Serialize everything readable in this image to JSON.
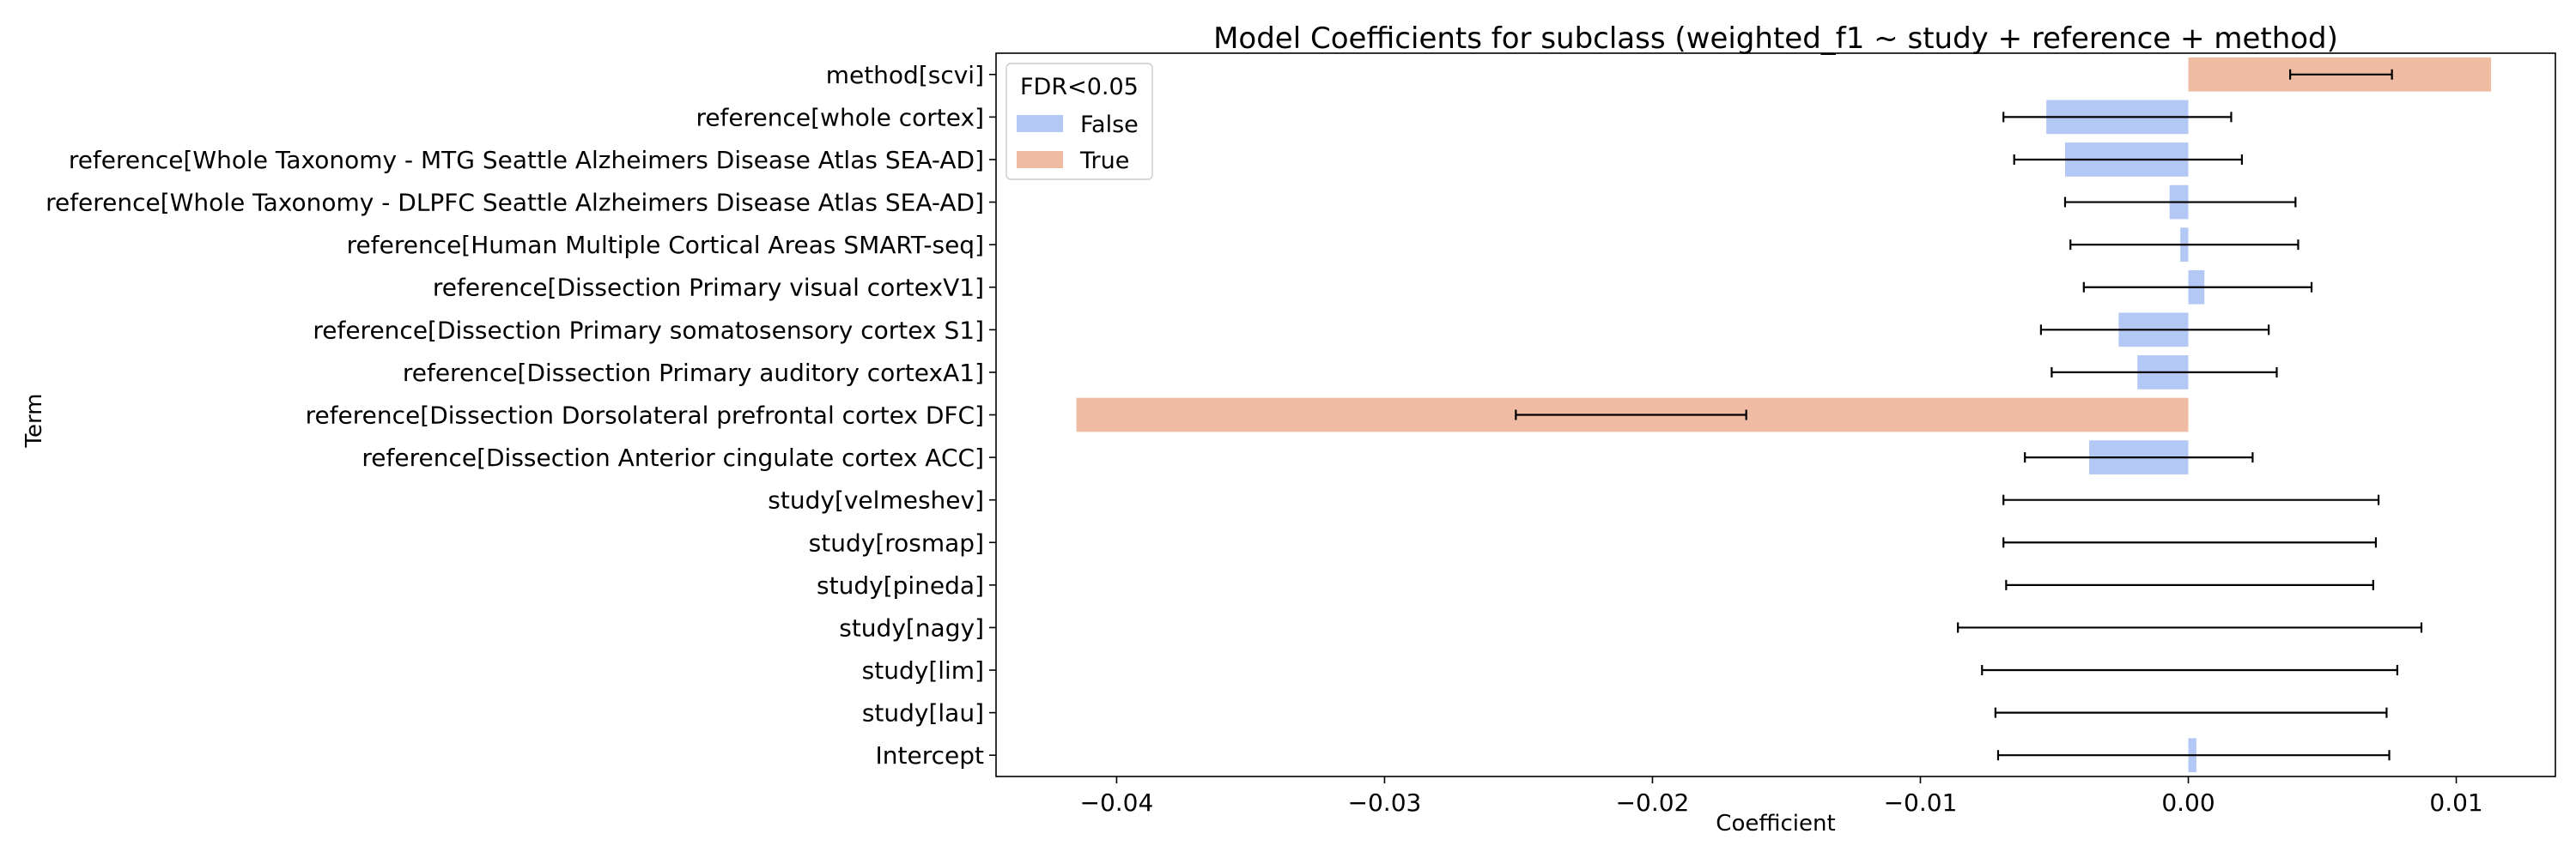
{
  "chart_data": {
    "type": "bar",
    "orientation": "horizontal",
    "title": "Model Coefficients for subclass (weighted_f1 ~ study + reference + method)",
    "xlabel": "Coefficient",
    "ylabel": "Term",
    "xlim": [
      -0.0445,
      0.0137
    ],
    "xticks": [
      -0.04,
      -0.03,
      -0.02,
      -0.01,
      0.0,
      0.01
    ],
    "xtick_labels": [
      "−0.04",
      "−0.03",
      "−0.02",
      "−0.01",
      "0.00",
      "0.01"
    ],
    "grid": false,
    "legend": {
      "title": "FDR<0.05",
      "placement": "top-left",
      "entries": [
        {
          "label": "False",
          "color": "#b4c8f5"
        },
        {
          "label": "True",
          "color": "#efbca3"
        }
      ]
    },
    "categories": [
      "method[scvi]",
      "reference[whole cortex]",
      "reference[Whole Taxonomy - MTG Seattle Alzheimers Disease Atlas SEA-AD]",
      "reference[Whole Taxonomy - DLPFC Seattle Alzheimers Disease Atlas SEA-AD]",
      "reference[Human Multiple Cortical Areas SMART-seq]",
      "reference[Dissection Primary visual cortexV1]",
      "reference[Dissection Primary somatosensory cortex S1]",
      "reference[Dissection Primary auditory cortexA1]",
      "reference[Dissection Dorsolateral prefrontal cortex DFC]",
      "reference[Dissection Anterior cingulate cortex ACC]",
      "study[velmeshev]",
      "study[rosmap]",
      "study[pineda]",
      "study[nagy]",
      "study[lim]",
      "study[lau]",
      "Intercept"
    ],
    "values": [
      0.0113,
      -0.0053,
      -0.0046,
      -0.0007,
      -0.0003,
      0.0006,
      -0.0026,
      -0.0019,
      -0.0415,
      -0.0037,
      0.0,
      0.0,
      0.0,
      0.0,
      0.0,
      0.0,
      0.0003
    ],
    "ci_low": [
      0.0038,
      -0.0069,
      -0.0065,
      -0.0046,
      -0.0044,
      -0.0039,
      -0.0055,
      -0.0051,
      -0.0251,
      -0.0061,
      -0.0069,
      -0.0069,
      -0.0068,
      -0.0086,
      -0.0077,
      -0.0072,
      -0.0071
    ],
    "ci_high": [
      0.0076,
      0.0016,
      0.002,
      0.004,
      0.0041,
      0.0046,
      0.003,
      0.0033,
      -0.0165,
      0.0024,
      0.0071,
      0.007,
      0.0069,
      0.0087,
      0.0078,
      0.0074,
      0.0075
    ],
    "fdr_significant": [
      true,
      false,
      false,
      false,
      false,
      false,
      false,
      false,
      true,
      false,
      false,
      false,
      false,
      false,
      false,
      false,
      false
    ]
  }
}
